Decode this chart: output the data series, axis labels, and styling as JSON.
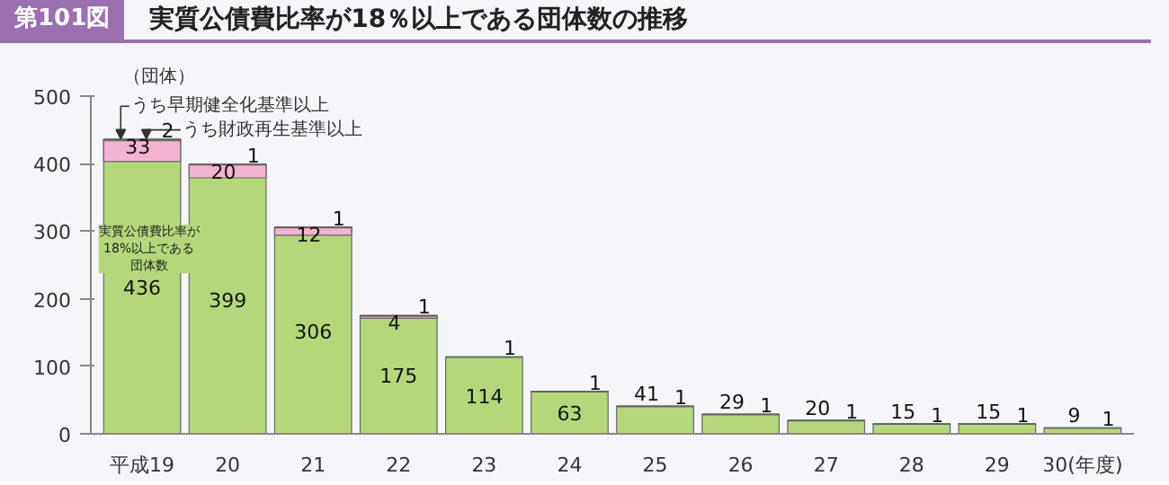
{
  "chart_data": {
    "type": "bar",
    "subtitle": "第101図",
    "title": "実質公債費比率が18％以上である団体数の推移",
    "ylabel": "（団体）",
    "categories": [
      "平成19",
      "20",
      "21",
      "22",
      "23",
      "24",
      "25",
      "26",
      "27",
      "28",
      "29",
      "30(年度)"
    ],
    "ylim": [
      0,
      500
    ],
    "yticks": [
      0,
      100,
      200,
      300,
      400,
      500
    ],
    "data_labels": true,
    "series": [
      {
        "color": "#b5d77a",
        "values": [
          436,
          399,
          306,
          175,
          114,
          63,
          41,
          29,
          20,
          15,
          15,
          9
        ]
      },
      {
        "name": "うち早期健全化基準以上",
        "color": "#f4b3d0",
        "values": [
          33,
          20,
          12,
          4,
          null,
          null,
          null,
          null,
          null,
          null,
          null,
          null
        ],
        "base": [
          403,
          379,
          294,
          171,
          null,
          null,
          null,
          null,
          null,
          null,
          null,
          null
        ]
      },
      {
        "name": "うち財政再生基準以上",
        "color": "#a0506a",
        "values": [
          2,
          1,
          1,
          1,
          1,
          1,
          1,
          1,
          1,
          1,
          1,
          1
        ],
        "base": [
          434,
          398,
          305,
          174,
          113,
          62,
          40,
          28,
          19,
          14,
          14,
          8
        ]
      }
    ],
    "annotations": [
      "実質公債費比率が18%以上である団体数"
    ]
  }
}
